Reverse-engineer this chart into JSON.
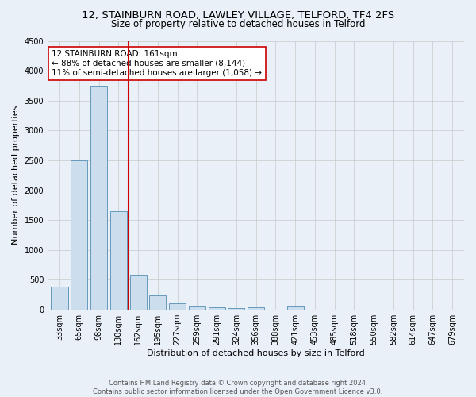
{
  "title_line1": "12, STAINBURN ROAD, LAWLEY VILLAGE, TELFORD, TF4 2FS",
  "title_line2": "Size of property relative to detached houses in Telford",
  "xlabel": "Distribution of detached houses by size in Telford",
  "ylabel": "Number of detached properties",
  "categories": [
    "33sqm",
    "65sqm",
    "98sqm",
    "130sqm",
    "162sqm",
    "195sqm",
    "227sqm",
    "259sqm",
    "291sqm",
    "324sqm",
    "356sqm",
    "388sqm",
    "421sqm",
    "453sqm",
    "485sqm",
    "518sqm",
    "550sqm",
    "582sqm",
    "614sqm",
    "647sqm",
    "679sqm"
  ],
  "values": [
    380,
    2500,
    3750,
    1650,
    580,
    240,
    105,
    55,
    35,
    25,
    40,
    0,
    55,
    0,
    0,
    0,
    0,
    0,
    0,
    0,
    0
  ],
  "bar_color": "#ccdded",
  "bar_edge_color": "#6699bb",
  "bg_color": "#eaf0f8",
  "grid_color": "#c8c8c8",
  "vline_color": "#cc0000",
  "annotation_text": "12 STAINBURN ROAD: 161sqm\n← 88% of detached houses are smaller (8,144)\n11% of semi-detached houses are larger (1,058) →",
  "annotation_box_color": "#ffffff",
  "annotation_box_edge": "#cc0000",
  "ylim": [
    0,
    4500
  ],
  "yticks": [
    0,
    500,
    1000,
    1500,
    2000,
    2500,
    3000,
    3500,
    4000,
    4500
  ],
  "footnote": "Contains HM Land Registry data © Crown copyright and database right 2024.\nContains public sector information licensed under the Open Government Licence v3.0.",
  "title_fontsize": 9.5,
  "subtitle_fontsize": 8.5,
  "axis_label_fontsize": 8,
  "tick_fontsize": 7,
  "annotation_fontsize": 7.5,
  "footnote_fontsize": 6.0
}
